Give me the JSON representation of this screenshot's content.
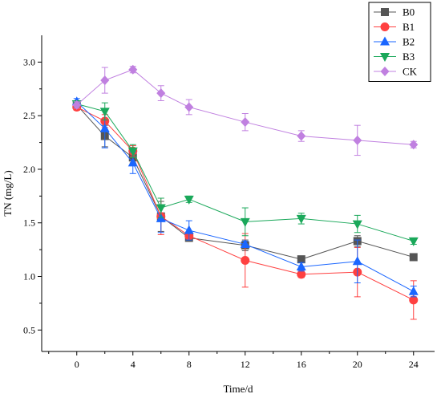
{
  "chart_data": {
    "type": "line",
    "title": "",
    "xlabel": "Time/d",
    "ylabel": "TN (mg/L)",
    "x": [
      0,
      2,
      4,
      6,
      8,
      12,
      16,
      20,
      24
    ],
    "xticks": [
      0,
      4,
      8,
      12,
      16,
      20,
      24
    ],
    "xlim": [
      -2.5,
      25.5
    ],
    "ylim": [
      0.3,
      3.25
    ],
    "yticks": [
      0.5,
      1.0,
      1.5,
      2.0,
      2.5,
      3.0
    ],
    "ytick_labels": [
      "0.5",
      "1.0",
      "1.5",
      "2.0",
      "2.5",
      "3.0"
    ],
    "legend_position": "top-right",
    "grid": false,
    "series": [
      {
        "name": "B0",
        "color": "#555555",
        "marker": "square",
        "values": [
          2.6,
          2.31,
          2.11,
          1.56,
          1.36,
          1.29,
          1.16,
          1.33,
          1.18
        ],
        "errors": [
          0.03,
          0.1,
          0.05,
          0.14,
          0.03,
          0.05,
          0.03,
          0.05,
          0.03
        ]
      },
      {
        "name": "B1",
        "color": "#ff4040",
        "marker": "circle",
        "values": [
          2.58,
          2.45,
          2.17,
          1.56,
          1.38,
          1.15,
          1.02,
          1.04,
          0.78
        ],
        "errors": [
          0.03,
          0.06,
          0.05,
          0.17,
          0.03,
          0.25,
          0.03,
          0.23,
          0.18
        ]
      },
      {
        "name": "B2",
        "color": "#1a66ff",
        "marker": "triangle-up",
        "values": [
          2.63,
          2.38,
          2.06,
          1.54,
          1.43,
          1.3,
          1.09,
          1.14,
          0.86
        ],
        "errors": [
          0.03,
          0.18,
          0.1,
          0.13,
          0.09,
          0.03,
          0.04,
          0.2,
          0.05
        ]
      },
      {
        "name": "B3",
        "color": "#1aa85a",
        "marker": "triangle-down",
        "values": [
          2.61,
          2.54,
          2.17,
          1.64,
          1.72,
          1.51,
          1.54,
          1.49,
          1.33
        ],
        "errors": [
          0.03,
          0.08,
          0.06,
          0.09,
          0.03,
          0.13,
          0.05,
          0.08,
          0.03
        ]
      },
      {
        "name": "CK",
        "color": "#c080e0",
        "marker": "diamond",
        "values": [
          2.6,
          2.83,
          2.93,
          2.71,
          2.58,
          2.44,
          2.31,
          2.27,
          2.23
        ],
        "errors": [
          0.03,
          0.12,
          0.03,
          0.07,
          0.07,
          0.08,
          0.05,
          0.14,
          0.03
        ]
      }
    ]
  }
}
